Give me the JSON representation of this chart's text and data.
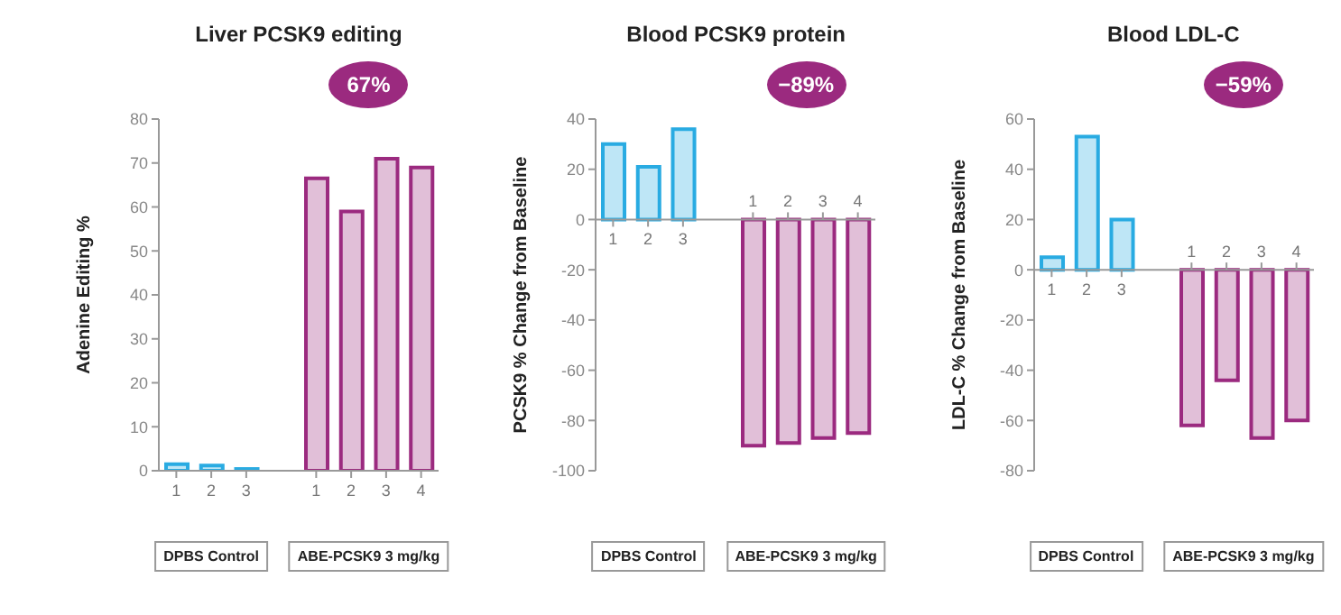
{
  "chart_data": [
    {
      "type": "bar",
      "title": "Liver PCSK9 editing",
      "ylabel": "Adenine Editing %",
      "categories": [
        "1",
        "2",
        "3",
        null,
        "1",
        "2",
        "3",
        "4"
      ],
      "values": [
        1.5,
        1.2,
        0.4,
        null,
        66.5,
        59,
        71,
        69
      ],
      "colors": [
        "#29abe2",
        "#29abe2",
        "#29abe2",
        null,
        "#9b2a7f",
        "#9b2a7f",
        "#9b2a7f",
        "#9b2a7f"
      ],
      "ylim": [
        0,
        80
      ],
      "yticks": [
        0,
        10,
        20,
        30,
        40,
        50,
        60,
        70,
        80
      ],
      "annotations": [
        "67%",
        "DPBS Control",
        "ABE-PCSK9 3 mg/kg"
      ]
    },
    {
      "type": "bar",
      "title": "Blood PCSK9 protein",
      "ylabel": "PCSK9 % Change from Baseline",
      "categories": [
        "1",
        "2",
        "3",
        null,
        "1",
        "2",
        "3",
        "4"
      ],
      "values": [
        30,
        21,
        36,
        null,
        -90,
        -89,
        -87,
        -85
      ],
      "colors": [
        "#29abe2",
        "#29abe2",
        "#29abe2",
        null,
        "#9b2a7f",
        "#9b2a7f",
        "#9b2a7f",
        "#9b2a7f"
      ],
      "ylim": [
        -100,
        40
      ],
      "yticks": [
        -100,
        -80,
        -60,
        -40,
        -20,
        0,
        20,
        40
      ],
      "annotations": [
        "−89%",
        "DPBS Control",
        "ABE-PCSK9 3 mg/kg"
      ]
    },
    {
      "type": "bar",
      "title": "Blood LDL-C",
      "ylabel": "LDL-C % Change from Baseline",
      "categories": [
        "1",
        "2",
        "3",
        null,
        "1",
        "2",
        "3",
        "4"
      ],
      "values": [
        5,
        53,
        20,
        null,
        -62,
        -44,
        -67,
        -60
      ],
      "colors": [
        "#29abe2",
        "#29abe2",
        "#29abe2",
        null,
        "#9b2a7f",
        "#9b2a7f",
        "#9b2a7f",
        "#9b2a7f"
      ],
      "ylim": [
        -80,
        60
      ],
      "yticks": [
        -80,
        -60,
        -40,
        -20,
        0,
        20,
        40,
        60
      ],
      "annotations": [
        "−59%",
        "DPBS Control",
        "ABE-PCSK9 3 mg/kg"
      ]
    }
  ]
}
